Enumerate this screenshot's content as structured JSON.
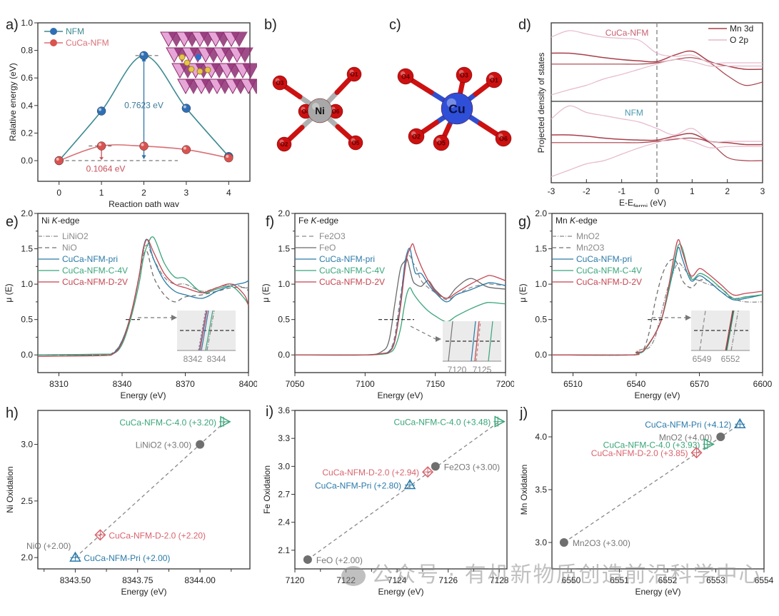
{
  "figure": {
    "panel_labels": [
      "a)",
      "b)",
      "c)",
      "d)",
      "e)",
      "f)",
      "g)",
      "h)",
      "i)",
      "j)"
    ],
    "watermark": "公众号 · 有机新物质创造前沿科学中心",
    "colors": {
      "nfm_blue": "#2f6fb5",
      "cuca_red": "#d9534f",
      "pri_blue": "#2a7aa8",
      "c4v_green": "#3aa57a",
      "d2v_red": "#c4454f",
      "ref_gray": "#8a8a8a",
      "mn3d": "#a8404a",
      "o2p": "#e6b9cc"
    }
  },
  "chart_data": [
    {
      "id": "a",
      "type": "line",
      "title": "",
      "xlabel": "Reaction path way",
      "ylabel": "Ralative energy (eV)",
      "xlim": [
        -0.5,
        4.5
      ],
      "ylim": [
        -0.15,
        1.0
      ],
      "xticks": [
        "0",
        "1",
        "2",
        "3",
        "4"
      ],
      "yticks": [
        "0.0",
        "0.2",
        "0.4",
        "0.6",
        "0.8",
        "1.0"
      ],
      "legend": [
        "NFM",
        "CuCa-NFM"
      ],
      "legend_position": "top-left",
      "x": [
        0,
        1,
        2,
        3,
        4
      ],
      "series": [
        {
          "name": "NFM",
          "values": [
            0.0,
            0.36,
            0.7623,
            0.38,
            0.03
          ]
        },
        {
          "name": "CuCa-NFM",
          "values": [
            0.0,
            0.1064,
            0.105,
            0.08,
            0.02
          ]
        }
      ],
      "annotations": [
        "0.7623 eV",
        "0.1064 eV"
      ]
    },
    {
      "id": "b",
      "type": "diagram",
      "center_atom": "Ni",
      "ligands": [
        "O1",
        "O2",
        "O3",
        "O4",
        "O5",
        "O6"
      ]
    },
    {
      "id": "c",
      "type": "diagram",
      "center_atom": "Cu",
      "ligands": [
        "O1",
        "O2",
        "O3",
        "O4",
        "O5",
        "O6"
      ]
    },
    {
      "id": "d",
      "type": "line",
      "xlabel": "E-E",
      "xlabel_sub": "fermi",
      "xlabel_tail": " (eV)",
      "ylabel": "Projected density of states",
      "xlim": [
        -3,
        3
      ],
      "xticks": [
        "-3",
        "-2",
        "-1",
        "0",
        "1",
        "2",
        "3"
      ],
      "legend": [
        "Mn 3d",
        "O 2p"
      ],
      "legend_position": "top-right",
      "subpanels": [
        "CuCa-NFM",
        "NFM"
      ],
      "x": [
        -3,
        -2.5,
        -2,
        -1.5,
        -1,
        -0.5,
        0,
        0.5,
        1,
        1.5,
        2,
        2.5,
        3
      ],
      "series": [
        {
          "name": "Mn 3d up (CuCa-NFM)",
          "values": [
            0.15,
            0.15,
            0.12,
            0.08,
            0.05,
            0.03,
            0.02,
            0.12,
            0.18,
            0.02,
            -0.05,
            -0.1,
            -0.1
          ]
        },
        {
          "name": "Mn 3d down (CuCa-NFM)",
          "values": [
            -0.02,
            -0.02,
            -0.02,
            -0.02,
            -0.02,
            -0.02,
            0.0,
            0.05,
            0.08,
            0.0,
            -0.2,
            -0.35,
            -0.3
          ]
        },
        {
          "name": "O 2p up (CuCa-NFM)",
          "values": [
            0.4,
            0.5,
            0.45,
            0.4,
            0.38,
            0.35,
            0.15,
            0.1,
            0.12,
            0.0,
            0.0,
            0.0,
            0.0
          ]
        },
        {
          "name": "O 2p down (CuCa-NFM)",
          "values": [
            -0.5,
            -0.42,
            -0.35,
            -0.25,
            -0.18,
            -0.1,
            -0.02,
            0.05,
            0.02,
            -0.05,
            -0.05,
            -0.05,
            -0.05
          ]
        },
        {
          "name": "Mn 3d up (NFM)",
          "values": [
            0.1,
            0.1,
            0.08,
            0.05,
            0.03,
            0.02,
            0.02,
            0.08,
            0.12,
            0.0,
            -0.02,
            -0.05,
            -0.05
          ]
        },
        {
          "name": "Mn 3d down (NFM)",
          "values": [
            -0.02,
            -0.02,
            -0.02,
            -0.02,
            -0.02,
            -0.02,
            0.0,
            0.03,
            0.05,
            -0.02,
            -0.25,
            -0.3,
            -0.3
          ]
        },
        {
          "name": "O 2p up (NFM)",
          "values": [
            0.35,
            0.55,
            0.45,
            0.4,
            0.35,
            0.3,
            0.2,
            0.1,
            0.2,
            0.0,
            0.0,
            0.0,
            0.0
          ]
        },
        {
          "name": "O 2p down (NFM)",
          "values": [
            -0.55,
            -0.45,
            -0.35,
            -0.3,
            -0.2,
            -0.1,
            -0.02,
            0.05,
            0.0,
            -0.1,
            -0.08,
            -0.08,
            -0.08
          ]
        }
      ]
    },
    {
      "id": "e",
      "type": "line",
      "title": "Ni K-edge",
      "title_element": "Ni ",
      "title_italic": "K",
      "title_tail": "-edge",
      "xlabel": "Energy (eV)",
      "ylabel": "μ (E)",
      "xlim": [
        8300,
        8400
      ],
      "ylim": [
        -0.25,
        2.0
      ],
      "xticks": [
        "8310",
        "8340",
        "8370",
        "8400"
      ],
      "yticks": [
        "0.0",
        "0.5",
        "1.0",
        "1.5",
        "2.0"
      ],
      "legend": [
        "LiNiO2",
        "NiO",
        "CuCa-NFM-pri",
        "CuCa-NFM-C-4V",
        "CuCa-NFM-D-2V"
      ],
      "legend_position": "top-left",
      "inset": {
        "xticks": [
          "8342",
          "8344"
        ]
      },
      "x": [
        8300,
        8330,
        8336,
        8340,
        8344,
        8348,
        8350,
        8352,
        8355,
        8360,
        8365,
        8370,
        8378,
        8385,
        8392,
        8398,
        8400
      ],
      "series": [
        {
          "name": "LiNiO2",
          "values": [
            0.0,
            0.0,
            0.03,
            0.2,
            0.55,
            1.1,
            1.45,
            1.55,
            1.35,
            1.1,
            1.0,
            1.0,
            0.9,
            0.95,
            1.0,
            0.95,
            0.95
          ]
        },
        {
          "name": "NiO",
          "values": [
            0.0,
            0.0,
            0.04,
            0.2,
            0.55,
            1.1,
            1.4,
            1.45,
            1.1,
            0.85,
            0.75,
            0.82,
            0.85,
            0.9,
            0.95,
            0.95,
            0.9
          ]
        },
        {
          "name": "CuCa-NFM-pri",
          "values": [
            0.0,
            0.01,
            0.03,
            0.2,
            0.55,
            1.1,
            1.5,
            1.63,
            1.35,
            1.05,
            0.9,
            0.85,
            0.8,
            0.9,
            0.98,
            1.02,
            1.05
          ]
        },
        {
          "name": "CuCa-NFM-C-4V",
          "values": [
            0.0,
            0.01,
            0.02,
            0.15,
            0.5,
            1.0,
            1.35,
            1.55,
            1.66,
            1.3,
            1.1,
            1.08,
            0.88,
            0.93,
            0.97,
            0.8,
            0.7
          ]
        },
        {
          "name": "CuCa-NFM-D-2V",
          "values": [
            -0.02,
            -0.01,
            0.02,
            0.18,
            0.55,
            1.1,
            1.48,
            1.63,
            1.45,
            1.15,
            1.0,
            0.95,
            0.88,
            0.95,
            1.0,
            0.85,
            0.7
          ]
        }
      ]
    },
    {
      "id": "f",
      "type": "line",
      "title": "Fe K-edge",
      "title_element": "Fe ",
      "title_italic": "K",
      "title_tail": "-edge",
      "xlabel": "Energy (eV)",
      "ylabel": "μ (E)",
      "xlim": [
        7050,
        7200
      ],
      "ylim": [
        -0.25,
        2.0
      ],
      "xticks": [
        "7050",
        "7100",
        "7150",
        "7200"
      ],
      "yticks": [
        "0.0",
        "0.5",
        "1.0",
        "1.5",
        "2.0"
      ],
      "legend": [
        "Fe2O3",
        "FeO",
        "CuCa-NFM-pri",
        "CuCa-NFM-C-4V",
        "CuCa-NFM-D-2V"
      ],
      "legend_position": "top-left",
      "inset": {
        "xticks": [
          "7120",
          "7125"
        ]
      },
      "x": [
        7050,
        7100,
        7112,
        7117,
        7121,
        7125,
        7128,
        7130,
        7132,
        7134,
        7136,
        7140,
        7145,
        7150,
        7158,
        7165,
        7175,
        7185,
        7190,
        7200
      ],
      "series": [
        {
          "name": "Fe2O3",
          "values": [
            0.0,
            0.0,
            0.02,
            0.05,
            0.25,
            0.8,
            1.2,
            1.35,
            1.4,
            1.3,
            1.25,
            1.05,
            0.95,
            0.88,
            0.78,
            0.85,
            0.95,
            1.0,
            1.0,
            0.98
          ]
        },
        {
          "name": "FeO",
          "values": [
            0.0,
            0.0,
            0.05,
            0.2,
            0.7,
            1.2,
            1.32,
            1.35,
            1.2,
            1.05,
            1.0,
            0.97,
            1.05,
            0.92,
            0.8,
            0.95,
            1.08,
            0.98,
            0.95,
            0.93
          ]
        },
        {
          "name": "CuCa-NFM-pri",
          "values": [
            0.0,
            0.0,
            0.02,
            0.05,
            0.2,
            0.7,
            1.25,
            1.45,
            1.5,
            1.3,
            1.15,
            1.15,
            1.0,
            0.88,
            0.75,
            0.85,
            0.92,
            1.0,
            1.02,
            0.98
          ]
        },
        {
          "name": "CuCa-NFM-C-4V",
          "values": [
            0.0,
            0.0,
            0.01,
            0.03,
            0.1,
            0.35,
            0.7,
            0.88,
            0.95,
            0.88,
            0.82,
            0.72,
            0.62,
            0.55,
            0.47,
            0.55,
            0.65,
            0.73,
            0.74,
            0.72
          ]
        },
        {
          "name": "CuCa-NFM-D-2V",
          "values": [
            0.0,
            0.0,
            0.02,
            0.04,
            0.18,
            0.65,
            1.15,
            1.4,
            1.5,
            1.57,
            1.45,
            1.25,
            1.05,
            0.9,
            0.8,
            0.88,
            1.0,
            1.1,
            1.12,
            1.05
          ]
        }
      ]
    },
    {
      "id": "g",
      "type": "line",
      "title": "Mn K-edge",
      "title_element": "Mn ",
      "title_italic": "K",
      "title_tail": "-edge",
      "xlabel": "Energy (eV)",
      "ylabel": "μ (E)",
      "xlim": [
        6500,
        6600
      ],
      "ylim": [
        -0.25,
        2.0
      ],
      "xticks": [
        "6510",
        "6540",
        "6570",
        "6600"
      ],
      "yticks": [
        "0.0",
        "0.5",
        "1.0",
        "1.5",
        "2.0"
      ],
      "legend": [
        "MnO2",
        "Mn2O3",
        "CuCa-NFM-pri",
        "CuCa-NFM-C-4V",
        "CuCa-NFM-D-2V"
      ],
      "legend_position": "top-left",
      "inset": {
        "xticks": [
          "6549",
          "6552"
        ]
      },
      "x": [
        6500,
        6538,
        6540,
        6543,
        6546,
        6549,
        6552,
        6555,
        6558,
        6560,
        6562,
        6566,
        6570,
        6574,
        6580,
        6586,
        6592,
        6600
      ],
      "series": [
        {
          "name": "MnO2",
          "values": [
            0.0,
            0.0,
            0.05,
            0.08,
            0.1,
            0.25,
            0.6,
            0.95,
            1.2,
            1.3,
            1.25,
            1.1,
            1.05,
            1.0,
            0.95,
            0.8,
            0.75,
            0.75
          ]
        },
        {
          "name": "Mn2O3",
          "values": [
            0.0,
            0.0,
            0.03,
            0.05,
            0.3,
            0.75,
            1.1,
            1.3,
            1.35,
            1.25,
            1.05,
            0.95,
            1.05,
            1.05,
            0.9,
            0.8,
            0.82,
            0.85
          ]
        },
        {
          "name": "CuCa-NFM-pri",
          "values": [
            0.0,
            0.0,
            0.03,
            0.04,
            0.15,
            0.3,
            0.5,
            0.85,
            1.25,
            1.52,
            1.35,
            1.05,
            1.12,
            1.05,
            0.9,
            0.78,
            0.8,
            0.85
          ]
        },
        {
          "name": "CuCa-NFM-C-4V",
          "values": [
            0.0,
            0.0,
            0.03,
            0.04,
            0.15,
            0.3,
            0.5,
            0.85,
            1.3,
            1.55,
            1.5,
            1.08,
            1.15,
            1.1,
            0.95,
            0.8,
            0.82,
            0.85
          ]
        },
        {
          "name": "CuCa-NFM-D-2V",
          "values": [
            0.0,
            0.0,
            0.04,
            0.05,
            0.16,
            0.3,
            0.5,
            0.9,
            1.4,
            1.63,
            1.45,
            1.12,
            1.22,
            1.15,
            1.0,
            0.85,
            0.87,
            0.9
          ]
        }
      ]
    },
    {
      "id": "h",
      "type": "scatter",
      "xlabel": "Energy (eV)",
      "ylabel": "Ni Oxidation",
      "xlim": [
        8343.35,
        8344.2
      ],
      "ylim": [
        1.9,
        3.3
      ],
      "xticks": [
        "8343.50",
        "8343.75",
        "8344.00"
      ],
      "yticks": [
        "2.0",
        "2.5",
        "3.0"
      ],
      "fit_line": [
        [
          8343.5,
          2.0
        ],
        [
          8344.1,
          3.2
        ]
      ],
      "points": [
        {
          "label": "CuCa-NFM-C-4.0 (+3.20)",
          "x": 8344.1,
          "y": 3.2,
          "marker": "triangle-right",
          "color": "#3aa57a",
          "label_side": "left"
        },
        {
          "label": "LiNiO2 (+3.00)",
          "x": 8344.0,
          "y": 3.0,
          "marker": "circle",
          "color": "#7a7a7a",
          "label_side": "left"
        },
        {
          "label": "CuCa-NFM-D-2.0 (+2.20)",
          "x": 8343.6,
          "y": 2.2,
          "marker": "diamond",
          "color": "#d9646e",
          "label_side": "right"
        },
        {
          "label": "NiO (+2.00)",
          "x": 8343.5,
          "y": 2.0,
          "marker": "none",
          "color": "#8a8a8a",
          "label_side": "above-left"
        },
        {
          "label": "CuCa-NFM-Pri (+2.00)",
          "x": 8343.5,
          "y": 2.0,
          "marker": "triangle-up",
          "color": "#2a7aa8",
          "label_side": "right"
        }
      ]
    },
    {
      "id": "i",
      "type": "scatter",
      "xlabel": "Energy (eV)",
      "ylabel": "Fe Oxidation",
      "xlim": [
        7120,
        7128.3
      ],
      "ylim": [
        1.9,
        3.6
      ],
      "xticks": [
        "7120",
        "7122",
        "7124",
        "7126",
        "7128"
      ],
      "yticks": [
        "2.1",
        "2.4",
        "2.7",
        "3.0",
        "3.3",
        "3.6"
      ],
      "fit_line": [
        [
          7120.5,
          2.0
        ],
        [
          7128.0,
          3.48
        ]
      ],
      "points": [
        {
          "label": "CuCa-NFM-C-4.0 (+3.48)",
          "x": 7128.0,
          "y": 3.48,
          "marker": "triangle-right",
          "color": "#3aa57a",
          "label_side": "left"
        },
        {
          "label": "Fe2O3 (+3.00)",
          "x": 7125.5,
          "y": 3.0,
          "marker": "circle",
          "color": "#7a7a7a",
          "label_side": "right"
        },
        {
          "label": "CuCa-NFM-D-2.0 (+2.94)",
          "x": 7125.2,
          "y": 2.94,
          "marker": "diamond",
          "color": "#d9646e",
          "label_side": "left"
        },
        {
          "label": "CuCa-NFM-Pri (+2.80)",
          "x": 7124.5,
          "y": 2.8,
          "marker": "triangle-up",
          "color": "#2a7aa8",
          "label_side": "left"
        },
        {
          "label": "FeO (+2.00)",
          "x": 7120.5,
          "y": 2.0,
          "marker": "circle",
          "color": "#7a7a7a",
          "label_side": "right"
        }
      ]
    },
    {
      "id": "j",
      "type": "scatter",
      "xlabel": "Energy (eV)",
      "ylabel": "Mn Oxidation",
      "xlim": [
        6549.6,
        6554
      ],
      "ylim": [
        2.75,
        4.25
      ],
      "xticks": [
        "6550",
        "6551",
        "6552",
        "6553",
        "6554"
      ],
      "yticks": [
        "3.0",
        "3.5",
        "4.0"
      ],
      "fit_line": [
        [
          6549.85,
          3.0
        ],
        [
          6553.5,
          4.12
        ]
      ],
      "points": [
        {
          "label": "CuCa-NFM-Pri (+4.12)",
          "x": 6553.5,
          "y": 4.12,
          "marker": "triangle-up",
          "color": "#2a7aa8",
          "label_side": "left"
        },
        {
          "label": "MnO2 (+4.00)",
          "x": 6553.1,
          "y": 4.0,
          "marker": "circle",
          "color": "#7a7a7a",
          "label_side": "left"
        },
        {
          "label": "CuCa-NFM-C-4.0 (+3.93)",
          "x": 6552.85,
          "y": 3.93,
          "marker": "triangle-right",
          "color": "#3aa57a",
          "label_side": "left"
        },
        {
          "label": "CuCa-NFM-D-2.0 (+3.85)",
          "x": 6552.6,
          "y": 3.85,
          "marker": "diamond",
          "color": "#d9646e",
          "label_side": "left"
        },
        {
          "label": "Mn2O3 (+3.00)",
          "x": 6549.85,
          "y": 3.0,
          "marker": "circle",
          "color": "#7a7a7a",
          "label_side": "right"
        }
      ]
    }
  ]
}
